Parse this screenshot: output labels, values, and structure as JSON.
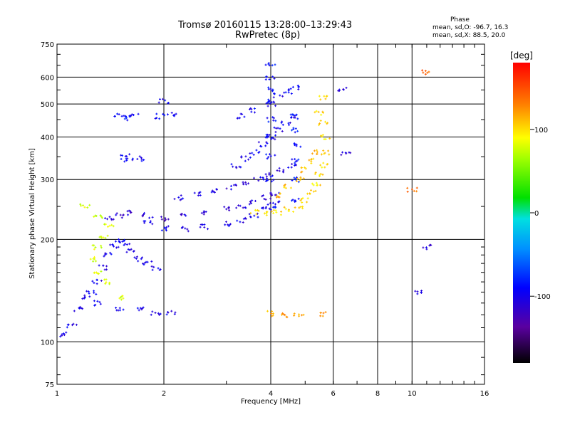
{
  "header": {
    "title_line1": "Tromsø 20160115 13:28:00–13:29:43",
    "title_line2": "RwPretec (8p)",
    "phase_title": "Phase",
    "stat_o": "mean, sd,O: -96.7, 16.3",
    "stat_x": "mean, sd,X: 88.5, 20.0"
  },
  "chart_data": {
    "type": "scatter",
    "title": "Tromsø 20160115 13:28:00–13:29:43",
    "subtitle": "RwPretec (8p)",
    "xlabel": "Frequency [MHz]",
    "ylabel": "Stationary phase Virtual Height [km]",
    "x_scale": "log",
    "y_scale": "log",
    "xlim": [
      1,
      16
    ],
    "ylim": [
      75,
      750
    ],
    "x_ticks": [
      1,
      2,
      4,
      6,
      8,
      10,
      16
    ],
    "y_ticks": [
      75,
      100,
      200,
      300,
      400,
      500,
      600,
      750
    ],
    "grid": true,
    "colorbar": {
      "label": "[deg]",
      "range": [
        -180,
        180
      ],
      "ticks": [
        100,
        0,
        -100
      ]
    },
    "traces": [
      {
        "phase": -100,
        "points": [
          [
            1.05,
            105
          ],
          [
            1.1,
            112
          ],
          [
            1.15,
            125
          ],
          [
            1.2,
            135
          ],
          [
            1.25,
            140
          ],
          [
            1.3,
            150
          ],
          [
            1.35,
            165
          ],
          [
            1.4,
            180
          ],
          [
            1.45,
            190
          ],
          [
            1.5,
            200
          ],
          [
            1.55,
            195
          ],
          [
            1.6,
            185
          ],
          [
            1.7,
            175
          ],
          [
            1.8,
            170
          ],
          [
            1.9,
            165
          ]
        ]
      },
      {
        "phase": -110,
        "points": [
          [
            1.4,
            230
          ],
          [
            1.5,
            235
          ],
          [
            1.6,
            240
          ],
          [
            1.8,
            235
          ],
          [
            2.0,
            230
          ],
          [
            2.3,
            235
          ],
          [
            2.6,
            240
          ],
          [
            3.0,
            245
          ],
          [
            3.3,
            250
          ],
          [
            3.6,
            258
          ],
          [
            3.9,
            265
          ],
          [
            4.1,
            272
          ]
        ]
      },
      {
        "phase": -100,
        "points": [
          [
            1.8,
            225
          ],
          [
            2.0,
            215
          ],
          [
            2.3,
            215
          ],
          [
            2.6,
            218
          ],
          [
            3.0,
            222
          ],
          [
            3.3,
            228
          ],
          [
            3.6,
            235
          ],
          [
            3.9,
            245
          ],
          [
            4.1,
            255
          ]
        ]
      },
      {
        "phase": -105,
        "points": [
          [
            2.2,
            265
          ],
          [
            2.5,
            272
          ],
          [
            2.8,
            278
          ],
          [
            3.1,
            285
          ],
          [
            3.4,
            292
          ],
          [
            3.7,
            300
          ],
          [
            4.0,
            310
          ],
          [
            4.3,
            320
          ],
          [
            4.6,
            330
          ]
        ]
      },
      {
        "phase": -100,
        "points": [
          [
            3.2,
            330
          ],
          [
            3.4,
            345
          ],
          [
            3.6,
            360
          ],
          [
            3.8,
            380
          ],
          [
            4.0,
            400
          ],
          [
            4.2,
            420
          ],
          [
            4.4,
            440
          ],
          [
            4.6,
            460
          ]
        ]
      },
      {
        "phase": -95,
        "points": [
          [
            3.3,
            460
          ],
          [
            3.6,
            480
          ],
          [
            3.9,
            510
          ],
          [
            4.2,
            530
          ],
          [
            4.5,
            545
          ],
          [
            4.7,
            560
          ]
        ]
      },
      {
        "phase": -90,
        "points": [
          [
            4.0,
            250
          ],
          [
            4.0,
            300
          ],
          [
            4.0,
            350
          ],
          [
            4.0,
            400
          ],
          [
            4.0,
            450
          ],
          [
            4.0,
            500
          ],
          [
            4.0,
            550
          ],
          [
            4.0,
            600
          ],
          [
            4.0,
            650
          ]
        ]
      },
      {
        "phase": -85,
        "points": [
          [
            4.7,
            260
          ],
          [
            4.7,
            300
          ],
          [
            4.7,
            340
          ],
          [
            4.7,
            380
          ],
          [
            4.7,
            420
          ],
          [
            4.7,
            460
          ]
        ]
      },
      {
        "phase": 100,
        "points": [
          [
            3.6,
            240
          ],
          [
            3.9,
            238
          ],
          [
            4.2,
            240
          ],
          [
            4.5,
            245
          ],
          [
            4.8,
            250
          ],
          [
            5.0,
            260
          ],
          [
            5.2,
            275
          ],
          [
            5.4,
            290
          ],
          [
            5.5,
            310
          ],
          [
            5.6,
            330
          ],
          [
            5.7,
            360
          ],
          [
            5.7,
            400
          ],
          [
            5.6,
            440
          ],
          [
            5.5,
            470
          ],
          [
            5.6,
            520
          ]
        ]
      },
      {
        "phase": 110,
        "points": [
          [
            4.2,
            270
          ],
          [
            4.5,
            285
          ],
          [
            4.8,
            300
          ],
          [
            5.0,
            320
          ],
          [
            5.2,
            340
          ],
          [
            5.3,
            360
          ]
        ]
      },
      {
        "phase": -90,
        "points": [
          [
            1.5,
            460
          ],
          [
            1.6,
            455
          ],
          [
            1.65,
            465
          ]
        ]
      },
      {
        "phase": -95,
        "points": [
          [
            1.55,
            350
          ],
          [
            1.6,
            340
          ],
          [
            1.7,
            345
          ]
        ]
      },
      {
        "phase": -100,
        "points": [
          [
            1.3,
            130
          ],
          [
            1.5,
            125
          ],
          [
            1.7,
            125
          ],
          [
            1.9,
            122
          ],
          [
            2.1,
            122
          ]
        ]
      },
      {
        "phase": -95,
        "points": [
          [
            1.95,
            460
          ],
          [
            2.0,
            510
          ],
          [
            2.1,
            465
          ]
        ]
      },
      {
        "phase": 120,
        "points": [
          [
            4.0,
            121
          ],
          [
            4.4,
            120
          ],
          [
            4.8,
            121
          ],
          [
            5.6,
            121
          ]
        ]
      },
      {
        "phase": 140,
        "points": [
          [
            10.0,
            280
          ],
          [
            11.0,
            620
          ]
        ]
      },
      {
        "phase": -110,
        "points": [
          [
            10.5,
            140
          ],
          [
            11.0,
            190
          ],
          [
            6.5,
            360
          ],
          [
            6.4,
            555
          ]
        ]
      },
      {
        "phase": 80,
        "points": [
          [
            1.2,
            250
          ],
          [
            1.3,
            235
          ],
          [
            1.4,
            220
          ],
          [
            1.35,
            205
          ],
          [
            1.3,
            190
          ],
          [
            1.25,
            175
          ],
          [
            1.3,
            160
          ],
          [
            1.4,
            150
          ],
          [
            1.5,
            135
          ]
        ]
      }
    ]
  }
}
